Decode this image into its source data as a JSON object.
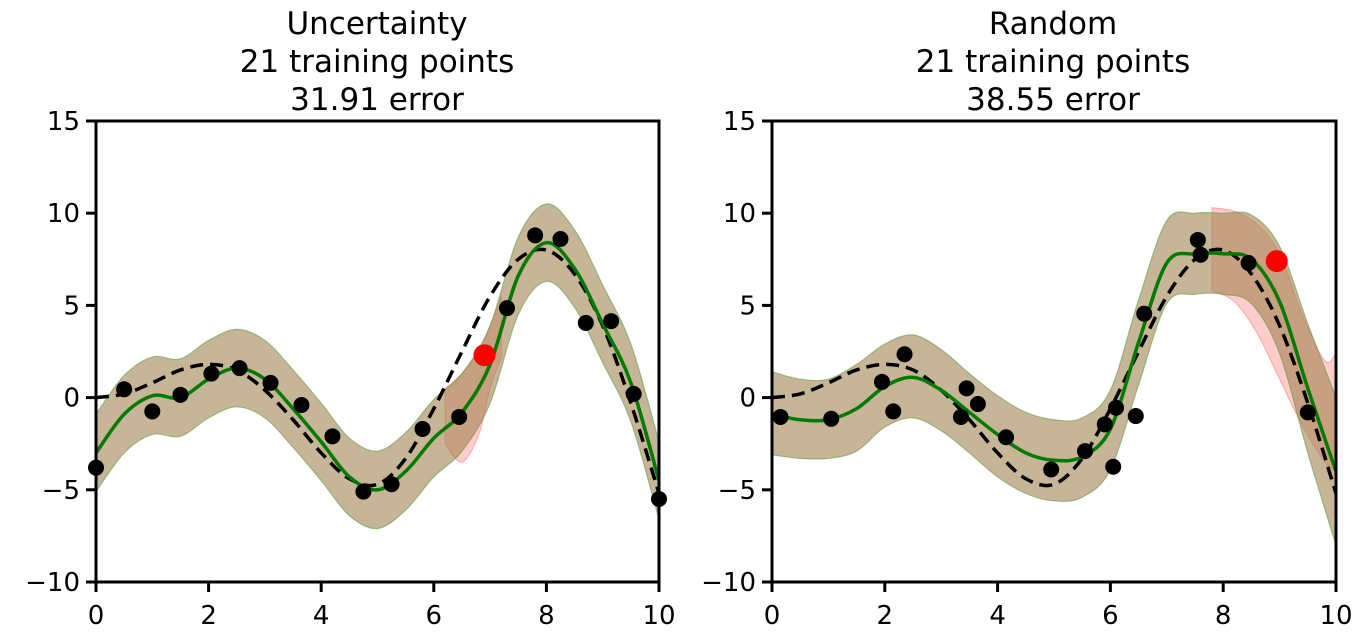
{
  "chart_data": [
    {
      "type": "line",
      "title_lines": [
        "Uncertainty",
        "21 training points",
        "31.91 error"
      ],
      "xlabel": "",
      "ylabel": "",
      "xlim": [
        0,
        10
      ],
      "ylim": [
        -10,
        15
      ],
      "xticks": [
        "0",
        "2",
        "4",
        "6",
        "8",
        "10"
      ],
      "yticks": [
        "−10",
        "−5",
        "0",
        "5",
        "10",
        "15"
      ],
      "grid": false,
      "legend": "none",
      "colors": {
        "true_function": "#000000",
        "mean": "#007a00",
        "band_green": "#2ca02c",
        "band_red": "#ff6b6b",
        "points": "#000000",
        "new_point": "#ff0000"
      },
      "true_function": {
        "x": [
          0,
          0.5,
          1,
          1.5,
          2,
          2.5,
          3,
          3.5,
          4,
          4.5,
          5,
          5.5,
          6,
          6.5,
          7,
          7.5,
          8,
          8.5,
          9,
          9.5,
          10
        ],
        "y": [
          0,
          0.2,
          0.8,
          1.5,
          1.8,
          1.5,
          0.4,
          -1.2,
          -3.0,
          -4.4,
          -4.7,
          -3.3,
          -0.6,
          2.5,
          5.5,
          7.5,
          8.0,
          6.7,
          3.9,
          -0.3,
          -5.2
        ]
      },
      "mean": {
        "x": [
          0,
          0.5,
          1,
          1.5,
          2,
          2.5,
          3,
          3.5,
          4,
          4.5,
          5,
          5.5,
          6,
          6.5,
          7,
          7.5,
          8,
          8.5,
          9,
          9.5,
          10
        ],
        "y": [
          -3.0,
          -0.9,
          0.1,
          0.0,
          1.0,
          1.6,
          1.0,
          -0.6,
          -2.4,
          -4.3,
          -5.0,
          -4.0,
          -2.2,
          -0.8,
          1.8,
          6.6,
          8.4,
          7.0,
          4.0,
          0.8,
          -4.5
        ]
      },
      "band_green": {
        "x": [
          0,
          0.5,
          1,
          1.5,
          2,
          2.5,
          3,
          3.5,
          4,
          4.5,
          5,
          5.5,
          6,
          6.5,
          7,
          7.5,
          8,
          8.5,
          9,
          9.5,
          10
        ],
        "lower": [
          -5.1,
          -3.0,
          -2.0,
          -2.1,
          -1.1,
          -0.5,
          -1.1,
          -2.7,
          -4.5,
          -6.4,
          -7.1,
          -6.1,
          -4.3,
          -2.9,
          -0.3,
          4.5,
          6.3,
          4.9,
          1.9,
          -1.3,
          -6.6
        ],
        "upper": [
          -0.9,
          1.2,
          2.2,
          2.1,
          3.1,
          3.7,
          3.1,
          1.5,
          -0.3,
          -2.2,
          -2.9,
          -1.9,
          -0.1,
          1.3,
          3.9,
          8.7,
          10.5,
          9.1,
          6.1,
          2.9,
          -2.4
        ]
      },
      "band_red": {
        "x": [
          6.2,
          6.5,
          6.8,
          7.0,
          7.2
        ],
        "lower": [
          -2.5,
          -3.5,
          -2.0,
          0.5,
          2.2
        ],
        "upper": [
          0.5,
          1.3,
          2.5,
          3.9,
          5.5
        ]
      },
      "training_points": {
        "x": [
          0.0,
          0.5,
          1.0,
          1.5,
          2.05,
          2.55,
          3.1,
          3.65,
          4.2,
          4.75,
          5.25,
          5.8,
          6.45,
          7.3,
          7.8,
          8.25,
          8.7,
          9.15,
          9.55,
          10.0
        ],
        "y": [
          -3.8,
          0.45,
          -0.75,
          0.15,
          1.3,
          1.6,
          0.8,
          -0.4,
          -2.1,
          -5.1,
          -4.7,
          -1.7,
          -1.05,
          4.85,
          8.8,
          8.6,
          4.05,
          4.15,
          0.2,
          -5.5
        ]
      },
      "new_point": {
        "x": 6.9,
        "y": 2.3
      }
    },
    {
      "type": "line",
      "title_lines": [
        "Random",
        "21 training points",
        "38.55 error"
      ],
      "xlabel": "",
      "ylabel": "",
      "xlim": [
        0,
        10
      ],
      "ylim": [
        -10,
        15
      ],
      "xticks": [
        "0",
        "2",
        "4",
        "6",
        "8",
        "10"
      ],
      "yticks": [
        "−10",
        "−5",
        "0",
        "5",
        "10",
        "15"
      ],
      "grid": false,
      "legend": "none",
      "colors": {
        "true_function": "#000000",
        "mean": "#007a00",
        "band_green": "#2ca02c",
        "band_red": "#ff6b6b",
        "points": "#000000",
        "new_point": "#ff0000"
      },
      "true_function": {
        "x": [
          0,
          0.5,
          1,
          1.5,
          2,
          2.5,
          3,
          3.5,
          4,
          4.5,
          5,
          5.5,
          6,
          6.5,
          7,
          7.5,
          8,
          8.5,
          9,
          9.5,
          10
        ],
        "y": [
          0,
          0.2,
          0.8,
          1.5,
          1.8,
          1.5,
          0.4,
          -1.2,
          -3.0,
          -4.4,
          -4.7,
          -3.3,
          -0.6,
          2.5,
          5.5,
          7.5,
          8.0,
          6.7,
          3.9,
          -0.3,
          -5.2
        ]
      },
      "mean": {
        "x": [
          0,
          0.5,
          1,
          1.5,
          2,
          2.5,
          3,
          3.5,
          4,
          4.5,
          5,
          5.5,
          6,
          6.5,
          7,
          7.5,
          8,
          8.5,
          9,
          9.5,
          10
        ],
        "y": [
          -0.9,
          -1.2,
          -1.2,
          -0.6,
          0.6,
          1.1,
          0.4,
          -0.8,
          -2.0,
          -3.0,
          -3.4,
          -3.2,
          -1.7,
          3.0,
          7.3,
          7.8,
          7.8,
          7.5,
          5.2,
          0.5,
          -4.0
        ]
      },
      "band_green": {
        "x": [
          0,
          0.5,
          1,
          1.5,
          2,
          2.5,
          3,
          3.5,
          4,
          4.5,
          5,
          5.5,
          6,
          6.5,
          7,
          7.5,
          8,
          8.5,
          9,
          9.5,
          10
        ],
        "lower": [
          -3.1,
          -3.3,
          -3.3,
          -2.9,
          -1.6,
          -1.1,
          -1.8,
          -3.0,
          -4.3,
          -5.2,
          -5.6,
          -5.4,
          -3.9,
          0.7,
          5.1,
          5.6,
          5.6,
          5.1,
          2.4,
          -3.0,
          -8.0
        ],
        "upper": [
          1.4,
          1.0,
          1.0,
          1.8,
          2.9,
          3.4,
          2.6,
          1.3,
          0.1,
          -0.8,
          -1.2,
          -1.1,
          0.4,
          5.3,
          9.6,
          10.0,
          10.0,
          9.9,
          8.2,
          4.0,
          0.0
        ]
      },
      "band_red": {
        "x": [
          7.8,
          8.2,
          8.6,
          9.0,
          9.4,
          9.8,
          10.0
        ],
        "lower": [
          5.8,
          5.2,
          3.5,
          1.0,
          -1.5,
          -3.5,
          -4.0
        ],
        "upper": [
          10.3,
          10.1,
          9.4,
          7.8,
          4.5,
          2.0,
          2.4
        ]
      },
      "training_points": {
        "x": [
          0.15,
          1.05,
          1.95,
          2.15,
          2.35,
          3.35,
          3.45,
          3.65,
          4.15,
          4.95,
          5.55,
          5.9,
          6.05,
          6.1,
          6.45,
          6.6,
          7.55,
          7.6,
          8.45,
          9.5
        ],
        "y": [
          -1.05,
          -1.15,
          0.85,
          -0.75,
          2.35,
          -1.05,
          0.5,
          -0.35,
          -2.15,
          -3.9,
          -2.9,
          -1.45,
          -3.75,
          -0.55,
          -1.0,
          4.55,
          8.55,
          7.75,
          7.3,
          -0.8
        ]
      },
      "new_point": {
        "x": 8.95,
        "y": 7.4
      }
    }
  ]
}
